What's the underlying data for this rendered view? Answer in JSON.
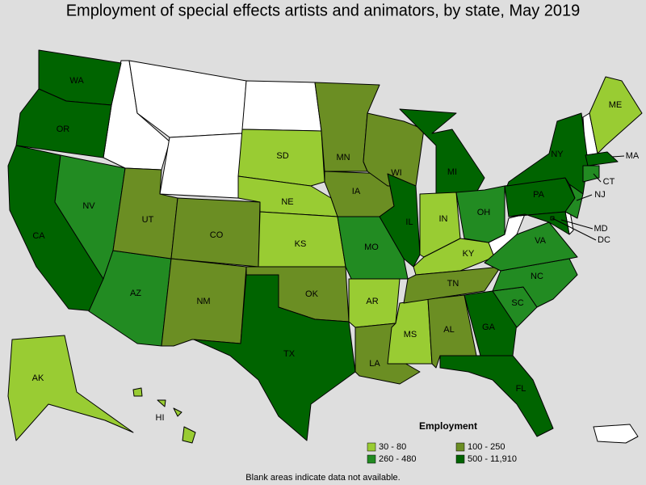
{
  "title": "Employment of special effects artists and animators, by state, May 2019",
  "legend": {
    "title": "Employment",
    "items": [
      {
        "label": "30 - 80",
        "color": "#99cc33"
      },
      {
        "label": "100 - 250",
        "color": "#6b8e23"
      },
      {
        "label": "260 - 480",
        "color": "#228b22"
      },
      {
        "label": "500 - 11,910",
        "color": "#006400"
      }
    ]
  },
  "states": [
    {
      "label": "WA",
      "class": 3
    },
    {
      "label": "OR",
      "class": 3
    },
    {
      "label": "CA",
      "class": 3
    },
    {
      "label": "NV",
      "class": 2
    },
    {
      "label": "AZ",
      "class": 2
    },
    {
      "label": "UT",
      "class": 1
    },
    {
      "label": "CO",
      "class": 1
    },
    {
      "label": "NM",
      "class": 1
    },
    {
      "label": "AK",
      "class": 0
    },
    {
      "label": "HI",
      "class": 0
    },
    {
      "label": "SD",
      "class": 0
    },
    {
      "label": "NE",
      "class": 0
    },
    {
      "label": "KS",
      "class": 0
    },
    {
      "label": "OK",
      "class": 1
    },
    {
      "label": "TX",
      "class": 3
    },
    {
      "label": "MN",
      "class": 1
    },
    {
      "label": "IA",
      "class": 1
    },
    {
      "label": "MO",
      "class": 2
    },
    {
      "label": "AR",
      "class": 0
    },
    {
      "label": "LA",
      "class": 1
    },
    {
      "label": "WI",
      "class": 1
    },
    {
      "label": "IL",
      "class": 3
    },
    {
      "label": "MS",
      "class": 0
    },
    {
      "label": "AL",
      "class": 1
    },
    {
      "label": "MI",
      "class": 3
    },
    {
      "label": "IN",
      "class": 0
    },
    {
      "label": "KY",
      "class": 0
    },
    {
      "label": "TN",
      "class": 1
    },
    {
      "label": "GA",
      "class": 3
    },
    {
      "label": "FL",
      "class": 3
    },
    {
      "label": "OH",
      "class": 2
    },
    {
      "label": "SC",
      "class": 2
    },
    {
      "label": "NC",
      "class": 2
    },
    {
      "label": "VA",
      "class": 2
    },
    {
      "label": "PA",
      "class": 3
    },
    {
      "label": "NY",
      "class": 3
    },
    {
      "label": "ME",
      "class": 0
    },
    {
      "label": "MA",
      "class": 3
    },
    {
      "label": "CT",
      "class": 2
    },
    {
      "label": "NJ",
      "class": 2
    },
    {
      "label": "MD",
      "class": 3
    },
    {
      "label": "DC",
      "class": 3
    }
  ],
  "footnote": "Blank areas indicate data not available."
}
